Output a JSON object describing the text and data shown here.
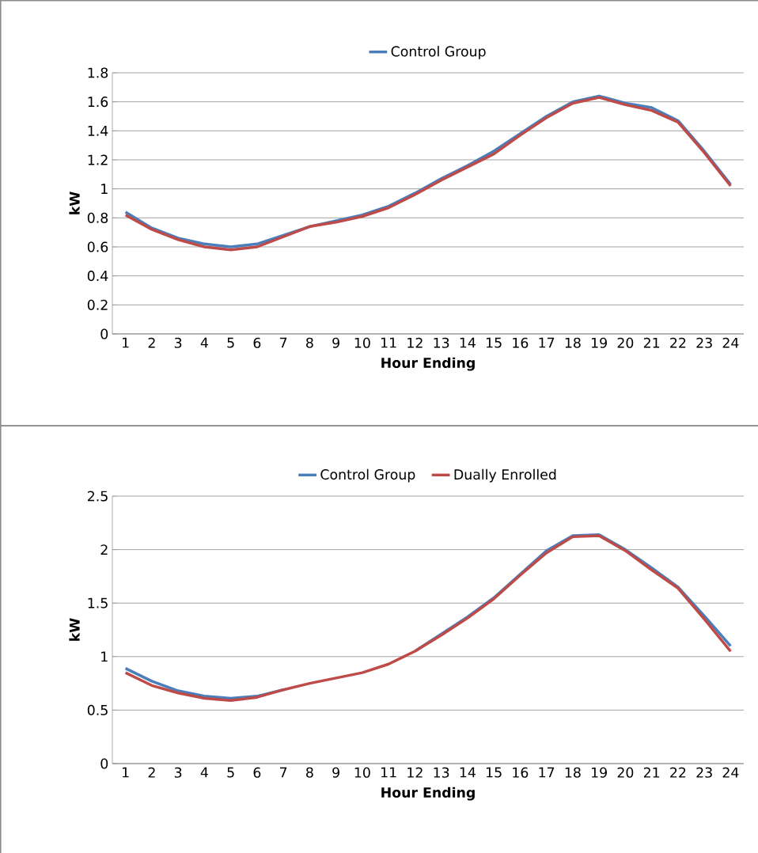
{
  "chart_data": [
    {
      "type": "line",
      "xlabel": "Hour Ending",
      "ylabel": "kW",
      "categories": [
        "1",
        "2",
        "3",
        "4",
        "5",
        "6",
        "7",
        "8",
        "9",
        "10",
        "11",
        "12",
        "13",
        "14",
        "15",
        "16",
        "17",
        "18",
        "19",
        "20",
        "21",
        "22",
        "23",
        "24"
      ],
      "ylim": [
        0,
        1.8
      ],
      "yticks": [
        0,
        0.2,
        0.4,
        0.6,
        0.8,
        1,
        1.2,
        1.4,
        1.6,
        1.8
      ],
      "grid": "y",
      "legend": "top",
      "marker": "none",
      "line_style": "solid",
      "series": [
        {
          "name": "Control Group",
          "color": "#4a7ebb",
          "values": [
            0.84,
            0.73,
            0.66,
            0.62,
            0.6,
            0.62,
            0.68,
            0.74,
            0.78,
            0.82,
            0.88,
            0.97,
            1.07,
            1.16,
            1.26,
            1.38,
            1.5,
            1.6,
            1.64,
            1.59,
            1.56,
            1.47,
            1.26,
            1.03
          ]
        },
        {
          "color": "#be4b48",
          "values": [
            0.82,
            0.72,
            0.65,
            0.6,
            0.58,
            0.6,
            0.67,
            0.74,
            0.77,
            0.81,
            0.87,
            0.96,
            1.06,
            1.15,
            1.24,
            1.37,
            1.49,
            1.59,
            1.63,
            1.58,
            1.54,
            1.46,
            1.25,
            1.02
          ]
        }
      ]
    },
    {
      "type": "line",
      "xlabel": "Hour Ending",
      "ylabel": "kW",
      "categories": [
        "1",
        "2",
        "3",
        "4",
        "5",
        "6",
        "7",
        "8",
        "9",
        "10",
        "11",
        "12",
        "13",
        "14",
        "15",
        "16",
        "17",
        "18",
        "19",
        "20",
        "21",
        "22",
        "23",
        "24"
      ],
      "ylim": [
        0,
        2.5
      ],
      "yticks": [
        0,
        0.5,
        1,
        1.5,
        2,
        2.5
      ],
      "grid": "y",
      "legend": "top",
      "marker": "none",
      "line_style": "solid",
      "series": [
        {
          "name": "Control Group",
          "color": "#4a7ebb",
          "values": [
            0.89,
            0.77,
            0.68,
            0.63,
            0.61,
            0.63,
            0.69,
            null,
            null,
            null,
            null,
            1.05,
            1.21,
            1.37,
            1.55,
            1.77,
            1.99,
            2.13,
            2.14,
            2.0,
            1.83,
            1.65,
            1.38,
            1.1
          ]
        },
        {
          "name": "Dually Enrolled",
          "color": "#be4b48",
          "values": [
            0.85,
            0.73,
            0.66,
            0.61,
            0.59,
            0.62,
            0.69,
            0.75,
            0.8,
            0.85,
            0.93,
            1.05,
            1.2,
            1.36,
            1.54,
            1.76,
            1.97,
            2.12,
            2.13,
            1.99,
            1.81,
            1.64,
            1.35,
            1.05
          ]
        }
      ]
    }
  ]
}
